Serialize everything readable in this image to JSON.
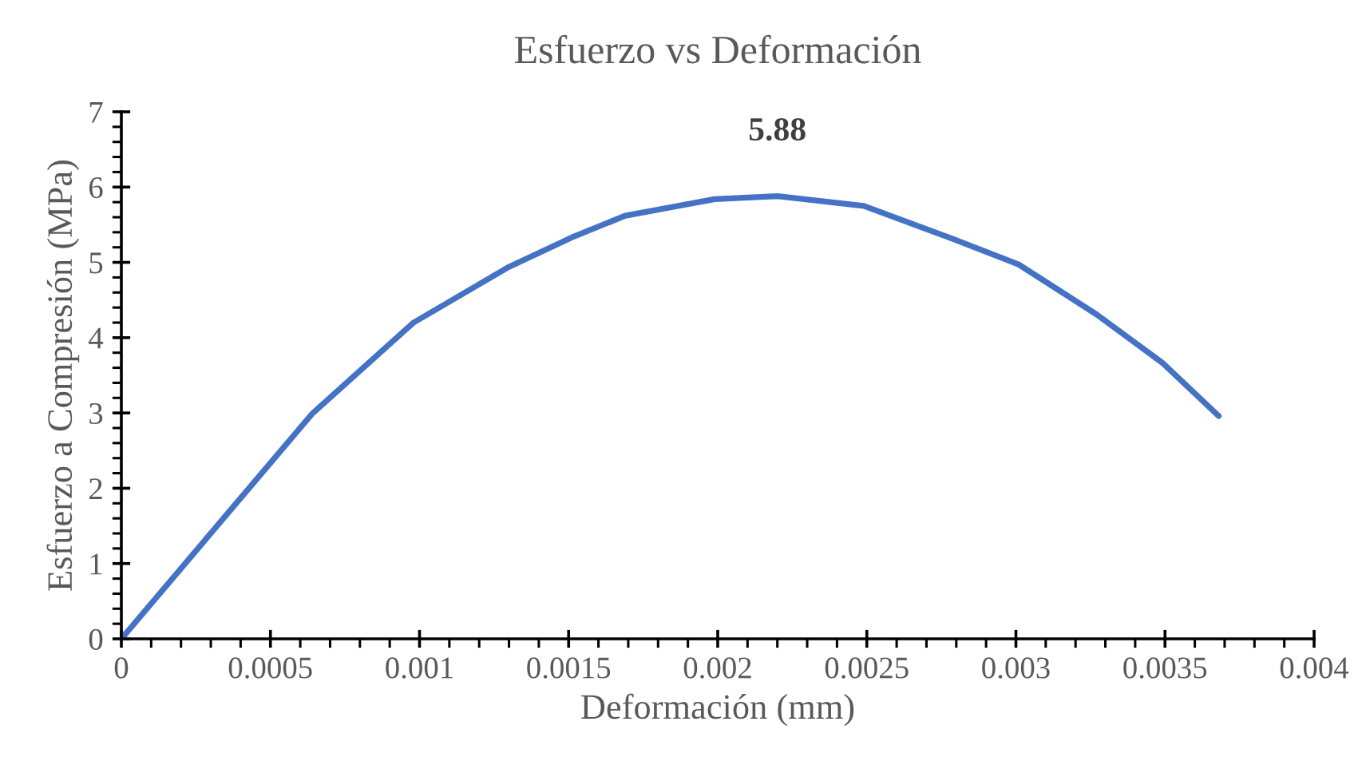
{
  "chart_data": {
    "type": "line",
    "title": "Esfuerzo vs Deformación",
    "xlabel": "Deformación (mm)",
    "ylabel": "Esfuerzo a Compresión (MPa)",
    "series": [
      {
        "color": "#4472c4",
        "x": [
          0,
          0.00064,
          0.00098,
          0.0013,
          0.00151,
          0.00169,
          0.00199,
          0.0022,
          0.00249,
          0.00279,
          0.00301,
          0.00327,
          0.00349,
          0.00368
        ],
        "values": [
          0,
          2.99,
          4.2,
          4.94,
          5.33,
          5.62,
          5.84,
          5.88,
          5.75,
          5.31,
          4.97,
          4.31,
          3.67,
          2.96
        ]
      }
    ],
    "annotations": [
      {
        "text": "5.88",
        "x": 0.0022,
        "y": 5.88
      }
    ],
    "xlim": [
      0,
      0.004
    ],
    "xticks": [
      0,
      0.0005,
      0.001,
      0.0015,
      0.002,
      0.0025,
      0.003,
      0.0035,
      0.004
    ],
    "ylim": [
      0,
      7
    ],
    "yticks": [
      0,
      1,
      2,
      3,
      4,
      5,
      6,
      7
    ],
    "grid": false,
    "legend": false,
    "marker": "none",
    "line_style": "solid"
  }
}
